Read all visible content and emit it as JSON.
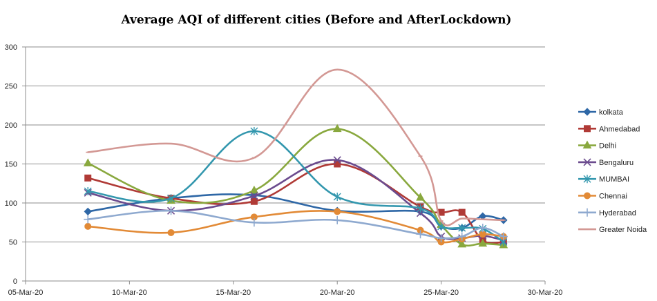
{
  "chart_data": {
    "type": "line",
    "title": "Average AQI of different cities (Before and AfterLockdown)",
    "xlabel": "",
    "ylabel": "",
    "x_axis": {
      "type": "date",
      "range": [
        "2020-03-05",
        "2020-03-30"
      ],
      "tick_labels": [
        "05-Mar-20",
        "10-Mar-20",
        "15-Mar-20",
        "20-Mar-20",
        "25-Mar-20",
        "30-Mar-20"
      ],
      "tick_dates": [
        "2020-03-05",
        "2020-03-10",
        "2020-03-15",
        "2020-03-20",
        "2020-03-25",
        "2020-03-30"
      ]
    },
    "ylim": [
      0,
      300
    ],
    "y_ticks": [
      0,
      50,
      100,
      150,
      200,
      250,
      300
    ],
    "y_tick_labels": [
      "0",
      "50",
      "100",
      "150",
      "200",
      "250",
      "300"
    ],
    "grid": "horizontal",
    "legend_position": "right",
    "smooth": true,
    "series": [
      {
        "name": "kolkata",
        "color": "#2E67A6",
        "marker": "diamond",
        "x": [
          "2020-03-08",
          "2020-03-12",
          "2020-03-16",
          "2020-03-20",
          "2020-03-24",
          "2020-03-25",
          "2020-03-26",
          "2020-03-27",
          "2020-03-28"
        ],
        "y": [
          89,
          106,
          110,
          90,
          89,
          70,
          68,
          83,
          78
        ]
      },
      {
        "name": "Ahmedabad",
        "color": "#B03A36",
        "marker": "square",
        "x": [
          "2020-03-08",
          "2020-03-12",
          "2020-03-16",
          "2020-03-20",
          "2020-03-24",
          "2020-03-25",
          "2020-03-26",
          "2020-03-27",
          "2020-03-28"
        ],
        "y": [
          132,
          106,
          102,
          150,
          95,
          88,
          88,
          52,
          50
        ]
      },
      {
        "name": "Delhi",
        "color": "#89A83E",
        "marker": "triangle",
        "x": [
          "2020-03-08",
          "2020-03-12",
          "2020-03-16",
          "2020-03-20",
          "2020-03-24",
          "2020-03-25",
          "2020-03-26",
          "2020-03-27",
          "2020-03-28"
        ],
        "y": [
          151,
          103,
          116,
          195,
          107,
          72,
          47,
          48,
          46
        ]
      },
      {
        "name": "Bengaluru",
        "color": "#6B4B8E",
        "marker": "x",
        "x": [
          "2020-03-08",
          "2020-03-12",
          "2020-03-16",
          "2020-03-20",
          "2020-03-24",
          "2020-03-25",
          "2020-03-26",
          "2020-03-27",
          "2020-03-28"
        ],
        "y": [
          113,
          90,
          109,
          155,
          87,
          57,
          55,
          58,
          52
        ]
      },
      {
        "name": "MUMBAI",
        "color": "#3397AE",
        "marker": "asterisk",
        "x": [
          "2020-03-08",
          "2020-03-12",
          "2020-03-16",
          "2020-03-20",
          "2020-03-24",
          "2020-03-25",
          "2020-03-26",
          "2020-03-27",
          "2020-03-28"
        ],
        "y": [
          115,
          106,
          192,
          108,
          93,
          70,
          68,
          67,
          50
        ]
      },
      {
        "name": "Chennai",
        "color": "#E28A36",
        "marker": "circle",
        "x": [
          "2020-03-08",
          "2020-03-12",
          "2020-03-16",
          "2020-03-20",
          "2020-03-24",
          "2020-03-25",
          "2020-03-26",
          "2020-03-27",
          "2020-03-28"
        ],
        "y": [
          70,
          62,
          82,
          89,
          65,
          50,
          54,
          60,
          57
        ]
      },
      {
        "name": "Hyderabad",
        "color": "#8EA9CF",
        "marker": "plus",
        "x": [
          "2020-03-08",
          "2020-03-12",
          "2020-03-16",
          "2020-03-20",
          "2020-03-24",
          "2020-03-25",
          "2020-03-26",
          "2020-03-27",
          "2020-03-28"
        ],
        "y": [
          79,
          90,
          75,
          78,
          60,
          55,
          57,
          68,
          57
        ]
      },
      {
        "name": "Greater Noida",
        "color": "#D39894",
        "marker": "dash",
        "x": [
          "2020-03-08",
          "2020-03-12",
          "2020-03-16",
          "2020-03-20",
          "2020-03-24",
          "2020-03-25",
          "2020-03-26",
          "2020-03-27",
          "2020-03-28"
        ],
        "y": [
          165,
          176,
          158,
          271,
          160,
          77,
          80,
          79,
          78
        ]
      }
    ]
  }
}
